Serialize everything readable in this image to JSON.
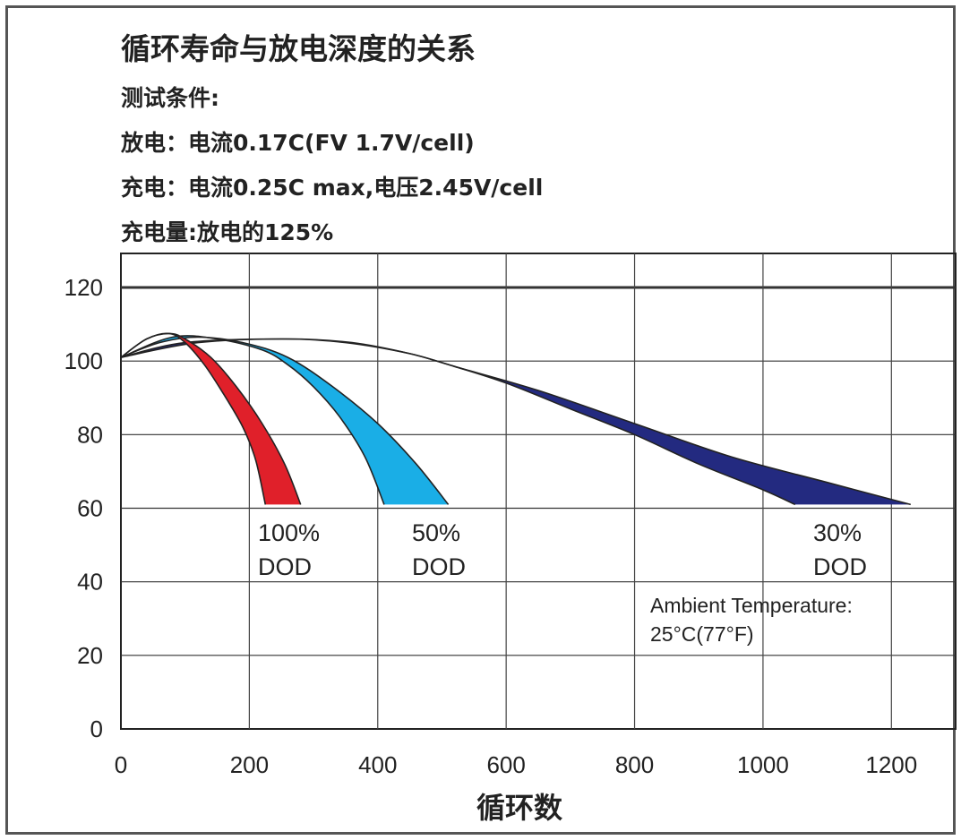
{
  "chart_data": {
    "type": "area",
    "title": "循环寿命与放电深度的关系",
    "test_conditions": {
      "heading": "测试条件:",
      "discharge": "放电：电流0.17C(FV 1.7V/cell)",
      "charge": "充电：电流0.25C max,电压2.45V/cell",
      "charge_amount": "充电量:放电的125%"
    },
    "xlabel": "循环数",
    "ylabel": "",
    "xlim": [
      0,
      1300
    ],
    "ylim": [
      0,
      120
    ],
    "x_ticks": [
      "0",
      "200",
      "400",
      "600",
      "800",
      "1000",
      "1200"
    ],
    "y_ticks": [
      "120",
      "100",
      "80",
      "60",
      "40",
      "20",
      "0"
    ],
    "grid": true,
    "series": [
      {
        "name_line1": "100%",
        "name_line2": "DOD",
        "color": "#e0202a",
        "upper": [
          [
            0,
            101
          ],
          [
            40,
            106
          ],
          [
            75,
            107.5
          ],
          [
            100,
            106
          ],
          [
            140,
            101
          ],
          [
            180,
            93
          ],
          [
            220,
            83
          ],
          [
            255,
            72
          ],
          [
            280,
            61
          ]
        ],
        "lower": [
          [
            0,
            101
          ],
          [
            40,
            106
          ],
          [
            75,
            107.5
          ],
          [
            100,
            105
          ],
          [
            130,
            99
          ],
          [
            160,
            91
          ],
          [
            190,
            82
          ],
          [
            210,
            73
          ],
          [
            225,
            61
          ]
        ]
      },
      {
        "name_line1": "50%",
        "name_line2": "DOD",
        "color": "#1aaee6",
        "upper": [
          [
            0,
            101
          ],
          [
            60,
            105
          ],
          [
            120,
            106.5
          ],
          [
            190,
            105
          ],
          [
            260,
            101
          ],
          [
            330,
            93
          ],
          [
            400,
            83
          ],
          [
            460,
            72
          ],
          [
            510,
            61
          ]
        ],
        "lower": [
          [
            0,
            101
          ],
          [
            80,
            106.5
          ],
          [
            150,
            106
          ],
          [
            220,
            103
          ],
          [
            260,
            99
          ],
          [
            300,
            93
          ],
          [
            340,
            85
          ],
          [
            380,
            74
          ],
          [
            410,
            61
          ]
        ]
      },
      {
        "name_line1": "30%",
        "name_line2": "DOD",
        "color": "#232a80",
        "upper": [
          [
            0,
            101
          ],
          [
            100,
            105
          ],
          [
            250,
            106
          ],
          [
            350,
            105
          ],
          [
            450,
            102
          ],
          [
            520,
            98.5
          ],
          [
            650,
            92
          ],
          [
            800,
            83
          ],
          [
            950,
            74
          ],
          [
            1100,
            67
          ],
          [
            1230,
            61
          ]
        ],
        "lower": [
          [
            0,
            101
          ],
          [
            120,
            105
          ],
          [
            260,
            106
          ],
          [
            360,
            105
          ],
          [
            450,
            102
          ],
          [
            520,
            98.5
          ],
          [
            600,
            94
          ],
          [
            700,
            87
          ],
          [
            800,
            80
          ],
          [
            900,
            72
          ],
          [
            1000,
            65
          ],
          [
            1050,
            61
          ]
        ]
      }
    ],
    "annotation_line1": "Ambient Temperature:",
    "annotation_line2": "25°C(77°F)"
  }
}
